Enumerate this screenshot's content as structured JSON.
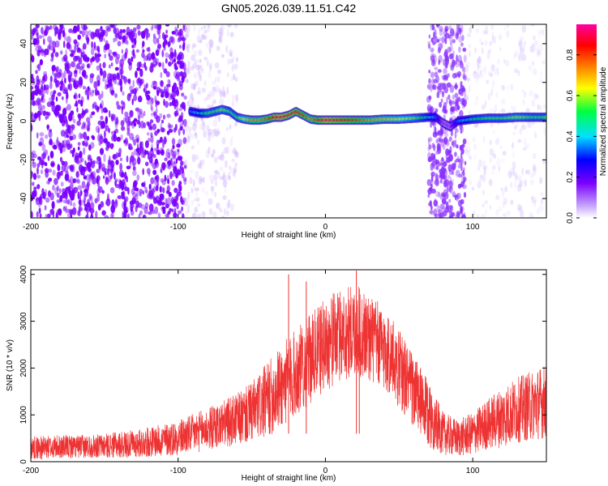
{
  "figure": {
    "title": "GN05.2026.039.11.51.C42"
  },
  "chart_data": [
    {
      "type": "heatmap",
      "title": "",
      "xlabel": "Height of straight line (km)",
      "ylabel": "Frequency (Hz)",
      "xlim": [
        -200,
        150
      ],
      "ylim": [
        -50,
        50
      ],
      "xticks": [
        -200,
        -100,
        0,
        100
      ],
      "yticks": [
        -40,
        -20,
        0,
        20,
        40
      ],
      "colorbar": {
        "label": "Normalized spectral amplitude",
        "range": [
          0.0,
          0.95
        ],
        "ticks": [
          0.0,
          0.2,
          0.4,
          0.6,
          0.8
        ],
        "tick_labels": [
          "0.0",
          "0.2",
          "0.4",
          "0.6",
          "0.8"
        ],
        "colormap": [
          "#ffffff",
          "#7a00ff",
          "#0000ff",
          "#00e0ff",
          "#00ff40",
          "#ffff00",
          "#ff8000",
          "#ff0000",
          "#ff00a0"
        ]
      },
      "noise_regions": [
        {
          "x_range": [
            -200,
            -95
          ],
          "level": "high",
          "color": "#7a00ff"
        },
        {
          "x_range": [
            -95,
            -60
          ],
          "level": "low",
          "color": "#c9a8ff"
        },
        {
          "x_range": [
            70,
            95
          ],
          "level": "medium",
          "color": "#8a30ff"
        },
        {
          "x_range": [
            95,
            150
          ],
          "level": "low",
          "color": "#d6c0ff"
        }
      ],
      "ridge": {
        "x": [
          -92,
          -85,
          -80,
          -75,
          -70,
          -65,
          -60,
          -55,
          -50,
          -45,
          -40,
          -35,
          -30,
          -25,
          -20,
          -15,
          -10,
          -5,
          0,
          10,
          20,
          30,
          40,
          50,
          60,
          70,
          75,
          80,
          85,
          90,
          100,
          110,
          120,
          130,
          140,
          150
        ],
        "y": [
          5,
          4,
          4,
          5,
          6,
          5,
          2,
          1,
          0.5,
          0.5,
          1,
          2,
          2,
          3,
          5,
          3,
          1,
          0.5,
          0.5,
          0.5,
          0.5,
          0.5,
          1,
          1,
          1.5,
          2,
          2,
          -1,
          -3,
          0,
          1,
          1.5,
          1.5,
          2,
          2,
          2
        ],
        "amplitude": [
          0.3,
          0.4,
          0.5,
          0.5,
          0.55,
          0.5,
          0.5,
          0.6,
          0.7,
          0.7,
          0.75,
          0.85,
          0.9,
          0.85,
          0.85,
          0.8,
          0.7,
          0.8,
          0.9,
          0.85,
          0.8,
          0.7,
          0.65,
          0.6,
          0.55,
          0.4,
          0.3,
          0.1,
          0.1,
          0.3,
          0.45,
          0.5,
          0.5,
          0.55,
          0.5,
          0.5
        ]
      }
    },
    {
      "type": "line",
      "title": "",
      "xlabel": "Height of straight line (km)",
      "ylabel": "SNR (10 * v/v)",
      "xlim": [
        -200,
        150
      ],
      "ylim": [
        0,
        4100
      ],
      "xticks": [
        -200,
        -100,
        0,
        100
      ],
      "yticks": [
        0,
        1000,
        2000,
        3000,
        4000
      ],
      "series": [
        {
          "color": "#ee3333",
          "x": [
            -200,
            -190,
            -180,
            -170,
            -160,
            -150,
            -140,
            -130,
            -120,
            -110,
            -100,
            -90,
            -80,
            -70,
            -60,
            -50,
            -40,
            -30,
            -20,
            -10,
            0,
            10,
            20,
            30,
            40,
            50,
            60,
            70,
            80,
            90,
            100,
            110,
            120,
            130,
            140,
            150
          ],
          "mean": [
            300,
            300,
            320,
            320,
            330,
            340,
            360,
            380,
            420,
            460,
            520,
            600,
            700,
            800,
            900,
            1050,
            1300,
            1600,
            1900,
            2200,
            2500,
            2700,
            2800,
            2650,
            2400,
            2000,
            1500,
            1000,
            600,
            500,
            600,
            800,
            950,
            1100,
            1200,
            1300
          ],
          "spread": [
            250,
            250,
            250,
            250,
            250,
            260,
            280,
            300,
            320,
            350,
            380,
            420,
            460,
            500,
            560,
            650,
            800,
            900,
            950,
            950,
            1000,
            1000,
            1000,
            950,
            900,
            850,
            800,
            700,
            450,
            400,
            450,
            550,
            650,
            700,
            750,
            800
          ]
        }
      ],
      "spikes": [
        {
          "x": -25,
          "y": 4000
        },
        {
          "x": -13,
          "y": 3850
        },
        {
          "x": 21,
          "y": 4080
        },
        {
          "x": 23,
          "y": 3700
        }
      ]
    }
  ]
}
